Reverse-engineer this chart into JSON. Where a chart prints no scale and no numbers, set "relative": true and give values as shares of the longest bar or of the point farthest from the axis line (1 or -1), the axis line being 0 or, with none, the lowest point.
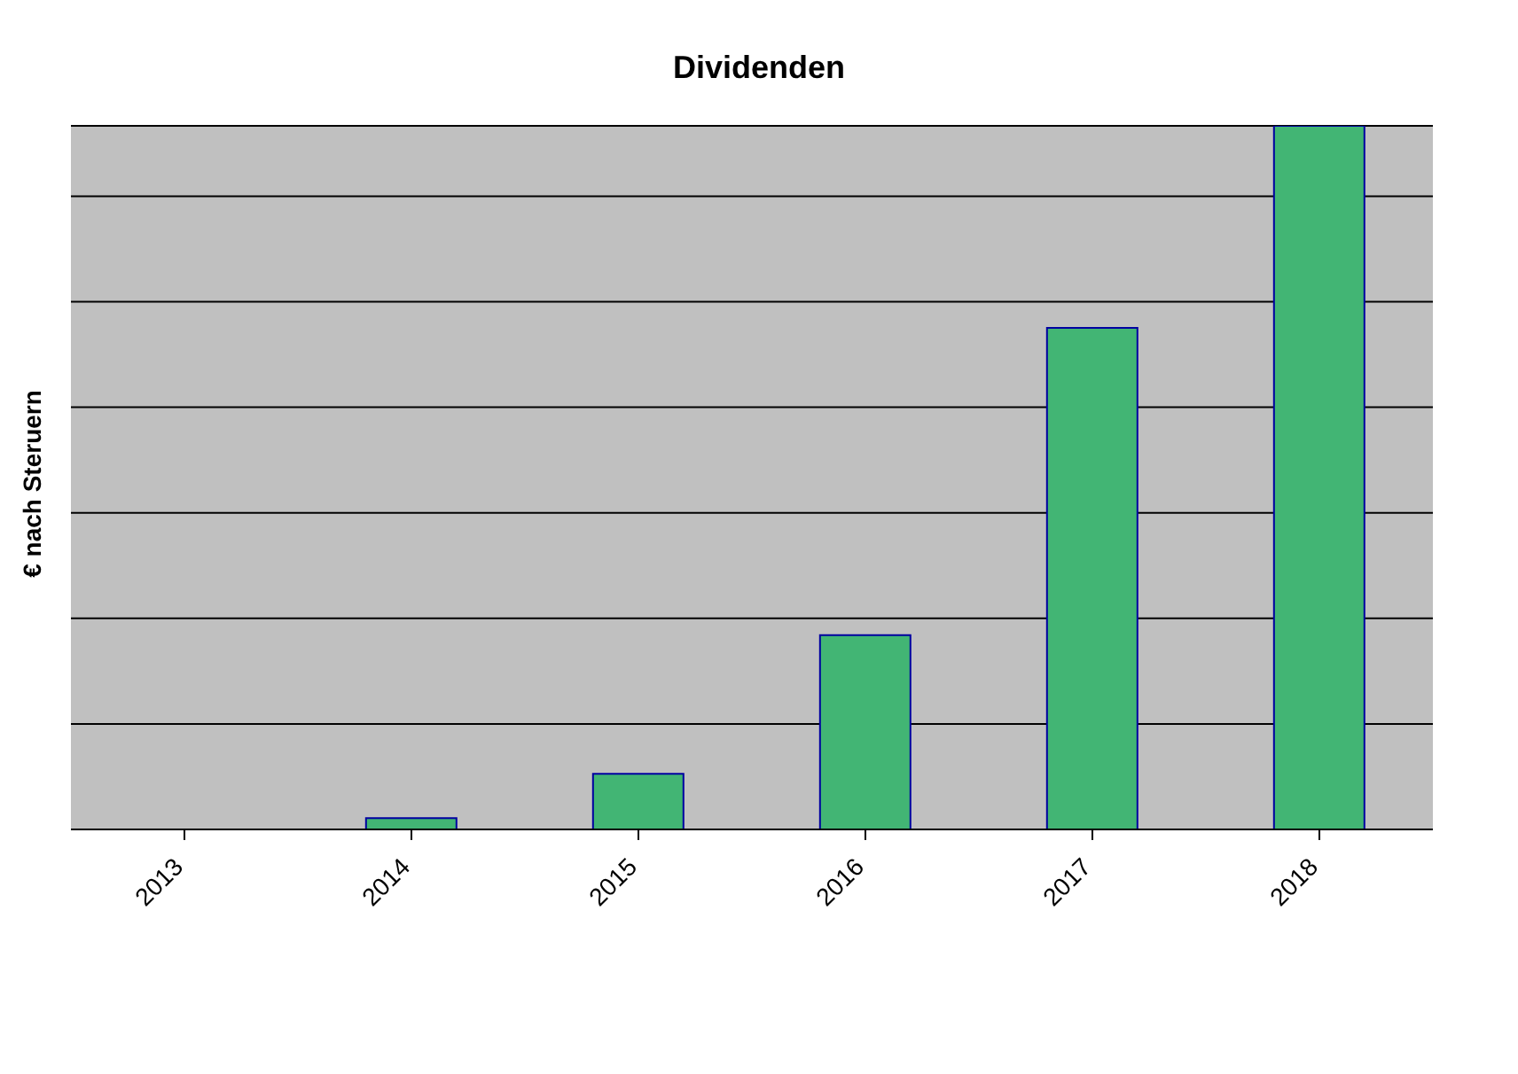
{
  "chart_data": {
    "type": "bar",
    "title": "Dividenden",
    "ylabel": "€ nach Steruern",
    "relative": true,
    "categories": [
      "2013",
      "2014",
      "2015",
      "2016",
      "2017",
      "2018"
    ],
    "values": [
      0,
      0.016,
      0.079,
      0.276,
      0.713,
      1
    ],
    "color": "#42b574",
    "grid": "y"
  }
}
